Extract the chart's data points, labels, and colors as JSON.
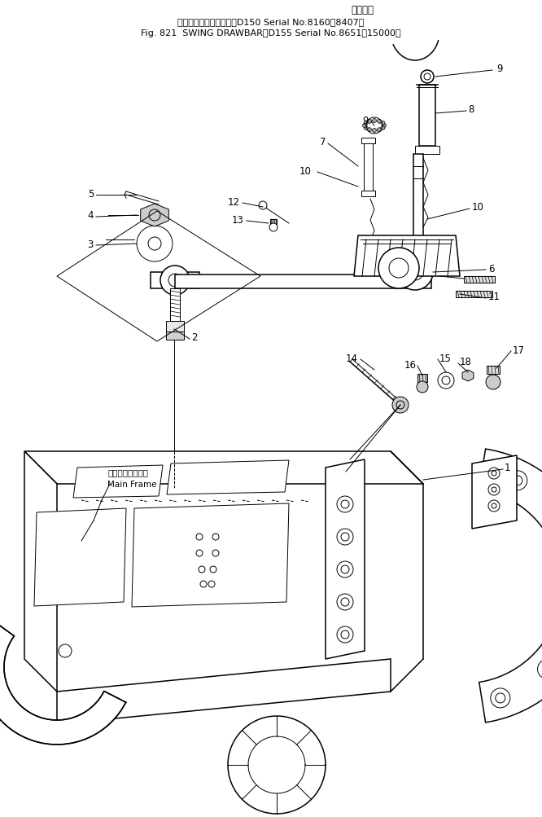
{
  "title_top": "適用号機",
  "title_jp": "スイング　ド　ロ－バ（D150 Serial No.8160～8407）",
  "title_en": "Fig. 821  SWING DRAWBAR（D155 Serial No.8651～15000）",
  "main_frame_jp": "メイン　フレーム",
  "main_frame_en": "Main Frame",
  "bg": "#ffffff",
  "lc": "#000000",
  "figsize": [
    6.66,
    10.04
  ],
  "dpi": 100
}
